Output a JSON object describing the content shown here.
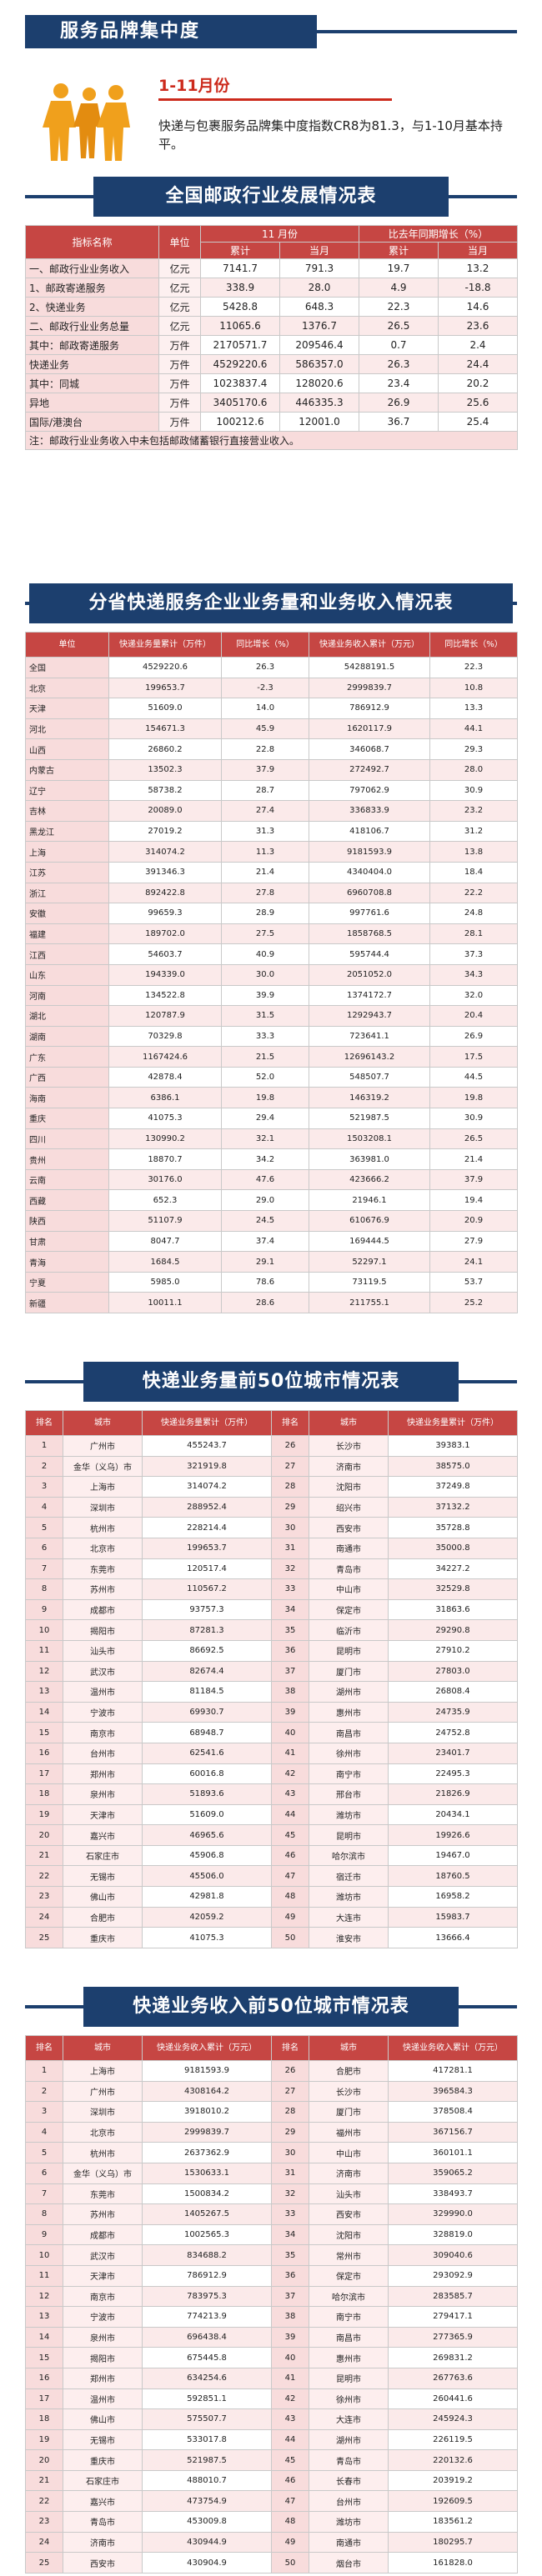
{
  "section1": {
    "title": "服务品牌集中度",
    "month": "1-11月份",
    "desc": "快递与包裹服务品牌集中度指数CR8为81.3，与1-10月基本持平。"
  },
  "section2": {
    "title": "全国邮政行业发展情况表",
    "headers": {
      "indicator": "指标名称",
      "unit": "单位",
      "month_group": "11  月份",
      "growth_group": "比去年同期增长（%）",
      "cum": "累计",
      "cur": "当月",
      "cum2": "累计",
      "cur2": "当月"
    },
    "rows": [
      [
        "一、邮政行业业务收入",
        "亿元",
        "7141.7",
        "791.3",
        "19.7",
        "13.2"
      ],
      [
        "1、邮政寄递服务",
        "亿元",
        "338.9",
        "28.0",
        "4.9",
        "-18.8"
      ],
      [
        "2、快递业务",
        "亿元",
        "5428.8",
        "648.3",
        "22.3",
        "14.6"
      ],
      [
        "二、邮政行业业务总量",
        "亿元",
        "11065.6",
        "1376.7",
        "26.5",
        "23.6"
      ],
      [
        "其中：邮政寄递服务",
        "万件",
        "2170571.7",
        "209546.4",
        "0.7",
        "2.4"
      ],
      [
        "快递业务",
        "万件",
        "4529220.6",
        "586357.0",
        "26.3",
        "24.4"
      ],
      [
        "其中：同城",
        "万件",
        "1023837.4",
        "128020.6",
        "23.4",
        "20.2"
      ],
      [
        "异地",
        "万件",
        "3405170.6",
        "446335.3",
        "26.9",
        "25.6"
      ],
      [
        "国际/港澳台",
        "万件",
        "100212.6",
        "12001.0",
        "36.7",
        "25.4"
      ]
    ],
    "note": "注：邮政行业业务收入中未包括邮政储蓄银行直接营业收入。"
  },
  "section3": {
    "title": "分省快递服务企业业务量和业务收入情况表",
    "headers": [
      "单位",
      "快递业务量累计（万件）",
      "同比增长（%）",
      "快递业务收入累计（万元）",
      "同比增长（%）"
    ],
    "rows": [
      [
        "全国",
        "4529220.6",
        "26.3",
        "54288191.5",
        "22.3"
      ],
      [
        "北京",
        "199653.7",
        "-2.3",
        "2999839.7",
        "10.8"
      ],
      [
        "天津",
        "51609.0",
        "14.0",
        "786912.9",
        "13.3"
      ],
      [
        "河北",
        "154671.3",
        "45.9",
        "1620117.9",
        "44.1"
      ],
      [
        "山西",
        "26860.2",
        "22.8",
        "346068.7",
        "29.3"
      ],
      [
        "内蒙古",
        "13502.3",
        "37.9",
        "272492.7",
        "28.0"
      ],
      [
        "辽宁",
        "58738.2",
        "28.7",
        "797062.9",
        "30.9"
      ],
      [
        "吉林",
        "20089.0",
        "27.4",
        "336833.9",
        "23.2"
      ],
      [
        "黑龙江",
        "27019.2",
        "31.3",
        "418106.7",
        "31.2"
      ],
      [
        "上海",
        "314074.2",
        "11.3",
        "9181593.9",
        "13.8"
      ],
      [
        "江苏",
        "391346.3",
        "21.4",
        "4340404.0",
        "18.4"
      ],
      [
        "浙江",
        "892422.8",
        "27.8",
        "6960708.8",
        "22.2"
      ],
      [
        "安徽",
        "99659.3",
        "28.9",
        "997761.6",
        "24.8"
      ],
      [
        "福建",
        "189702.0",
        "27.5",
        "1858768.5",
        "28.1"
      ],
      [
        "江西",
        "54603.7",
        "40.9",
        "595744.4",
        "37.3"
      ],
      [
        "山东",
        "194339.0",
        "30.0",
        "2051052.0",
        "34.3"
      ],
      [
        "河南",
        "134522.8",
        "39.9",
        "1374172.7",
        "32.0"
      ],
      [
        "湖北",
        "120787.9",
        "31.5",
        "1292943.7",
        "20.4"
      ],
      [
        "湖南",
        "70329.8",
        "33.3",
        "723641.1",
        "26.9"
      ],
      [
        "广东",
        "1167424.6",
        "21.5",
        "12696143.2",
        "17.5"
      ],
      [
        "广西",
        "42878.4",
        "52.0",
        "548507.7",
        "44.5"
      ],
      [
        "海南",
        "6386.1",
        "19.8",
        "146319.2",
        "19.8"
      ],
      [
        "重庆",
        "41075.3",
        "29.4",
        "521987.5",
        "30.9"
      ],
      [
        "四川",
        "130990.2",
        "32.1",
        "1503208.1",
        "26.5"
      ],
      [
        "贵州",
        "18870.7",
        "34.2",
        "363981.0",
        "21.4"
      ],
      [
        "云南",
        "30176.0",
        "47.6",
        "423666.2",
        "37.9"
      ],
      [
        "西藏",
        "652.3",
        "29.0",
        "21946.1",
        "19.4"
      ],
      [
        "陕西",
        "51107.9",
        "24.5",
        "610676.9",
        "20.9"
      ],
      [
        "甘肃",
        "8047.7",
        "37.4",
        "169444.5",
        "27.9"
      ],
      [
        "青海",
        "1684.5",
        "29.1",
        "52297.1",
        "24.1"
      ],
      [
        "宁夏",
        "5985.0",
        "78.6",
        "73119.5",
        "53.7"
      ],
      [
        "新疆",
        "10011.1",
        "28.6",
        "211755.1",
        "25.2"
      ]
    ]
  },
  "section4": {
    "title": "快递业务量前50位城市情况表",
    "headers": [
      "排名",
      "城市",
      "快递业务量累计（万件）",
      "排名",
      "城市",
      "快递业务量累计（万件）"
    ],
    "rows": [
      [
        "1",
        "广州市",
        "455243.7",
        "26",
        "长沙市",
        "39383.1"
      ],
      [
        "2",
        "金华（义乌）市",
        "321919.8",
        "27",
        "济南市",
        "38575.0"
      ],
      [
        "3",
        "上海市",
        "314074.2",
        "28",
        "沈阳市",
        "37249.8"
      ],
      [
        "4",
        "深圳市",
        "288952.4",
        "29",
        "绍兴市",
        "37132.2"
      ],
      [
        "5",
        "杭州市",
        "228214.4",
        "30",
        "西安市",
        "35728.8"
      ],
      [
        "6",
        "北京市",
        "199653.7",
        "31",
        "南通市",
        "35000.8"
      ],
      [
        "7",
        "东莞市",
        "120517.4",
        "32",
        "青岛市",
        "34227.2"
      ],
      [
        "8",
        "苏州市",
        "110567.2",
        "33",
        "中山市",
        "32529.8"
      ],
      [
        "9",
        "成都市",
        "93757.3",
        "34",
        "保定市",
        "31863.6"
      ],
      [
        "10",
        "揭阳市",
        "87281.3",
        "35",
        "临沂市",
        "29290.8"
      ],
      [
        "11",
        "汕头市",
        "86692.5",
        "36",
        "昆明市",
        "27910.2"
      ],
      [
        "12",
        "武汉市",
        "82674.4",
        "37",
        "厦门市",
        "27803.0"
      ],
      [
        "13",
        "温州市",
        "81184.5",
        "38",
        "湖州市",
        "26808.4"
      ],
      [
        "14",
        "宁波市",
        "69930.7",
        "39",
        "惠州市",
        "24735.9"
      ],
      [
        "15",
        "南京市",
        "68948.7",
        "40",
        "南昌市",
        "24752.8"
      ],
      [
        "16",
        "台州市",
        "62541.6",
        "41",
        "徐州市",
        "23401.7"
      ],
      [
        "17",
        "郑州市",
        "60016.8",
        "42",
        "南宁市",
        "22495.3"
      ],
      [
        "18",
        "泉州市",
        "51893.6",
        "43",
        "邢台市",
        "21826.9"
      ],
      [
        "19",
        "天津市",
        "51609.0",
        "44",
        "潍坊市",
        "20434.1"
      ],
      [
        "20",
        "嘉兴市",
        "46965.6",
        "45",
        "昆明市",
        "19926.6"
      ],
      [
        "21",
        "石家庄市",
        "45906.8",
        "46",
        "哈尔滨市",
        "19467.0"
      ],
      [
        "22",
        "无锡市",
        "45506.0",
        "47",
        "宿迁市",
        "18760.5"
      ],
      [
        "23",
        "佛山市",
        "42981.8",
        "48",
        "潍坊市",
        "16958.2"
      ],
      [
        "24",
        "合肥市",
        "42059.2",
        "49",
        "大连市",
        "15983.7"
      ],
      [
        "25",
        "重庆市",
        "41075.3",
        "50",
        "淮安市",
        "13666.4"
      ]
    ]
  },
  "section5": {
    "title": "快递业务收入前50位城市情况表",
    "headers": [
      "排名",
      "城市",
      "快递业务收入累计（万元）",
      "排名",
      "城市",
      "快递业务收入累计（万元）"
    ],
    "rows": [
      [
        "1",
        "上海市",
        "9181593.9",
        "26",
        "合肥市",
        "417281.1"
      ],
      [
        "2",
        "广州市",
        "4308164.2",
        "27",
        "长沙市",
        "396584.3"
      ],
      [
        "3",
        "深圳市",
        "3918010.2",
        "28",
        "厦门市",
        "378508.4"
      ],
      [
        "4",
        "北京市",
        "2999839.7",
        "29",
        "福州市",
        "367156.7"
      ],
      [
        "5",
        "杭州市",
        "2637362.9",
        "30",
        "中山市",
        "360101.1"
      ],
      [
        "6",
        "金华（义乌）市",
        "1530633.1",
        "31",
        "济南市",
        "359065.2"
      ],
      [
        "7",
        "东莞市",
        "1500834.2",
        "32",
        "汕头市",
        "338493.7"
      ],
      [
        "8",
        "苏州市",
        "1405267.5",
        "33",
        "西安市",
        "329990.0"
      ],
      [
        "9",
        "成都市",
        "1002565.3",
        "34",
        "沈阳市",
        "328819.0"
      ],
      [
        "10",
        "武汉市",
        "834688.2",
        "35",
        "常州市",
        "309040.6"
      ],
      [
        "11",
        "天津市",
        "786912.9",
        "36",
        "保定市",
        "293092.9"
      ],
      [
        "12",
        "南京市",
        "783975.3",
        "37",
        "哈尔滨市",
        "283585.7"
      ],
      [
        "13",
        "宁波市",
        "774213.9",
        "38",
        "南宁市",
        "279417.1"
      ],
      [
        "14",
        "泉州市",
        "696438.4",
        "39",
        "南昌市",
        "277365.9"
      ],
      [
        "15",
        "揭阳市",
        "675445.8",
        "40",
        "惠州市",
        "269831.2"
      ],
      [
        "16",
        "郑州市",
        "634254.6",
        "41",
        "昆明市",
        "267763.6"
      ],
      [
        "17",
        "温州市",
        "592851.1",
        "42",
        "徐州市",
        "260441.6"
      ],
      [
        "18",
        "佛山市",
        "575507.7",
        "43",
        "大连市",
        "245924.3"
      ],
      [
        "19",
        "无锡市",
        "533017.8",
        "44",
        "湖州市",
        "226119.5"
      ],
      [
        "20",
        "重庆市",
        "521987.5",
        "45",
        "青岛市",
        "220132.6"
      ],
      [
        "21",
        "石家庄市",
        "488010.7",
        "46",
        "长春市",
        "203919.2"
      ],
      [
        "22",
        "嘉兴市",
        "473754.9",
        "47",
        "台州市",
        "192609.5"
      ],
      [
        "23",
        "青岛市",
        "453009.8",
        "48",
        "潍坊市",
        "183561.2"
      ],
      [
        "24",
        "济南市",
        "430944.9",
        "49",
        "南通市",
        "180295.7"
      ],
      [
        "25",
        "西安市",
        "430904.9",
        "50",
        "烟台市",
        "161828.0"
      ]
    ]
  },
  "colors": {
    "navy": "#1c3f6e",
    "red": "#c64643",
    "pink": "#f8dcdc",
    "accent": "#cc2a1c"
  }
}
